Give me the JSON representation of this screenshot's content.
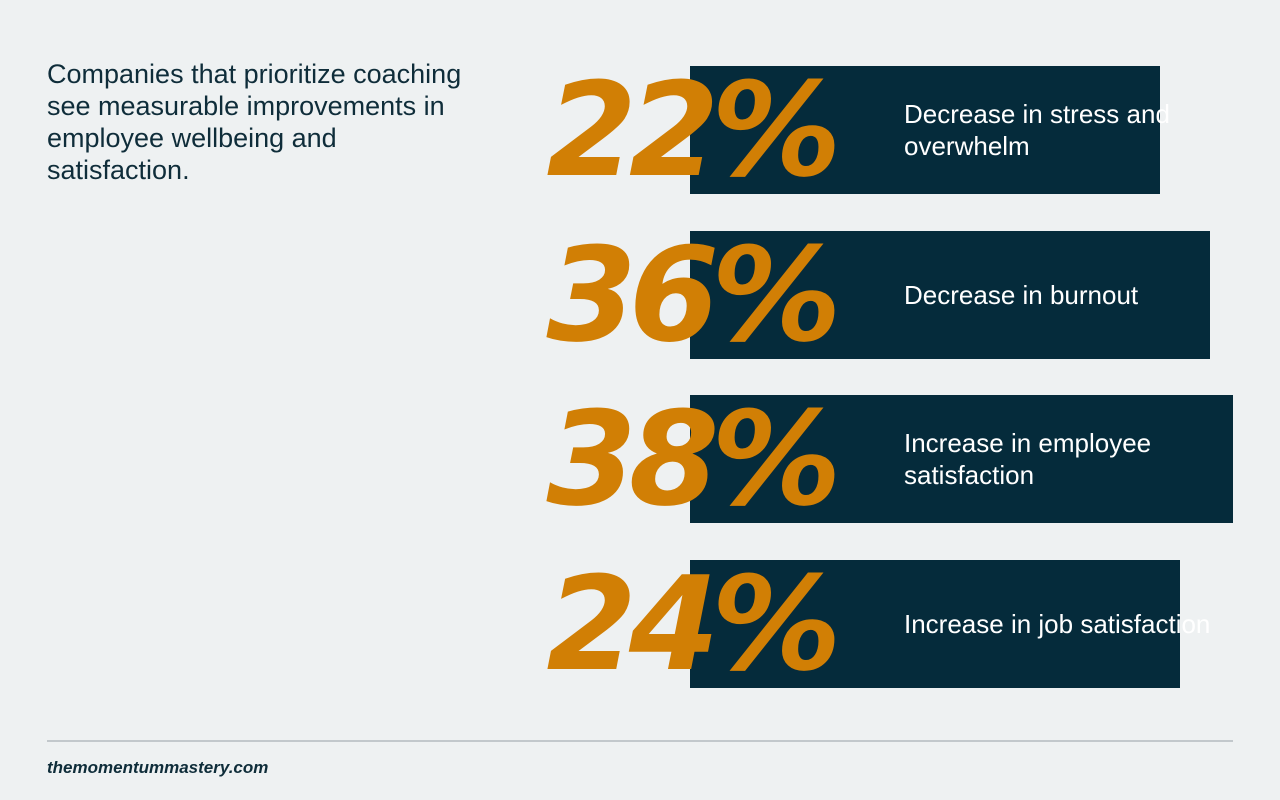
{
  "intro": {
    "text": "Companies that prioritize coaching see measurable improvements in employee wellbeing and satisfaction."
  },
  "stats": [
    {
      "value": "22%",
      "description": "Decrease in stress and overwhelm"
    },
    {
      "value": "36%",
      "description": "Decrease in burnout"
    },
    {
      "value": "38%",
      "description": "Increase in employee satisfaction"
    },
    {
      "value": "24%",
      "description": "Increase in job satisfaction"
    }
  ],
  "footer": {
    "site": "themomentummastery.com"
  },
  "colors": {
    "background": "#eef1f2",
    "bar": "#052b3b",
    "accent": "#d17f05",
    "text_dark": "#0f2d3a",
    "text_light": "#ffffff"
  }
}
